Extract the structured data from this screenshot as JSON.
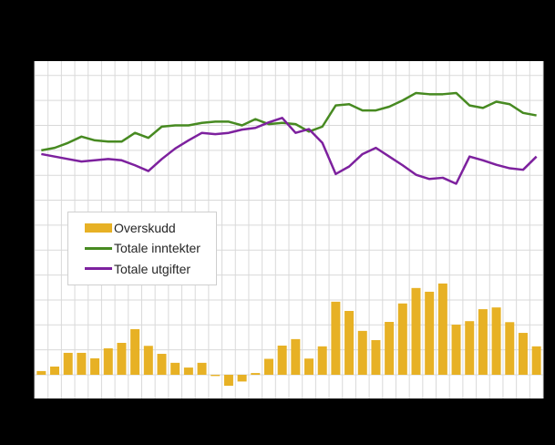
{
  "window": {
    "background_color": "#000000",
    "plot_background_color": "#ffffff",
    "gridline_color": "#d9d9d9"
  },
  "legend": {
    "items": [
      {
        "label": "Overskudd",
        "type": "bar",
        "color": "#e7b125"
      },
      {
        "label": "Totale inntekter",
        "type": "line",
        "color": "#478a21"
      },
      {
        "label": "Totale utgifter",
        "type": "line",
        "color": "#7d219e"
      }
    ]
  },
  "chart_data": {
    "type": "combo (bar + line)",
    "title": "",
    "xlabel": "",
    "ylabel": "",
    "x_count": 38,
    "x_labels_visible": false,
    "y_tick_labels_visible": false,
    "y_unit": "gridline divisions above the bar baseline (no axis labels are visible in the image)",
    "grid": true,
    "legend_position": "inside-left-middle",
    "gridline_color": "#d9d9d9",
    "series": [
      {
        "name": "Overskudd",
        "type": "bar",
        "color": "#e7b125",
        "values": [
          0.15,
          0.33,
          0.88,
          0.88,
          0.66,
          1.06,
          1.28,
          1.83,
          1.16,
          0.84,
          0.48,
          0.29,
          0.48,
          -0.05,
          -0.44,
          -0.27,
          0.07,
          0.64,
          1.17,
          1.43,
          0.65,
          1.14,
          2.93,
          2.56,
          1.76,
          1.39,
          2.12,
          2.86,
          3.48,
          3.33,
          3.66,
          2.01,
          2.15,
          2.63,
          2.7,
          2.11,
          1.68,
          1.14
        ]
      },
      {
        "name": "Totale inntekter",
        "type": "line",
        "color": "#478a21",
        "values": [
          9.0,
          9.1,
          9.3,
          9.55,
          9.4,
          9.35,
          9.35,
          9.7,
          9.5,
          9.95,
          10.0,
          10.0,
          10.1,
          10.15,
          10.15,
          10.0,
          10.25,
          10.05,
          10.1,
          10.05,
          9.75,
          9.95,
          10.8,
          10.85,
          10.6,
          10.6,
          10.75,
          11.0,
          11.3,
          11.25,
          11.25,
          11.3,
          10.8,
          10.7,
          10.95,
          10.85,
          10.5,
          10.4
        ]
      },
      {
        "name": "Totale utgifter",
        "type": "line",
        "color": "#7d219e",
        "values": [
          8.85,
          8.75,
          8.65,
          8.55,
          8.6,
          8.65,
          8.6,
          8.4,
          8.17,
          8.65,
          9.07,
          9.4,
          9.7,
          9.65,
          9.7,
          9.83,
          9.9,
          10.12,
          10.3,
          9.7,
          9.85,
          9.3,
          8.05,
          8.35,
          8.85,
          9.1,
          8.75,
          8.4,
          8.02,
          7.85,
          7.9,
          7.66,
          8.75,
          8.6,
          8.42,
          8.28,
          8.22,
          8.75
        ]
      }
    ]
  }
}
